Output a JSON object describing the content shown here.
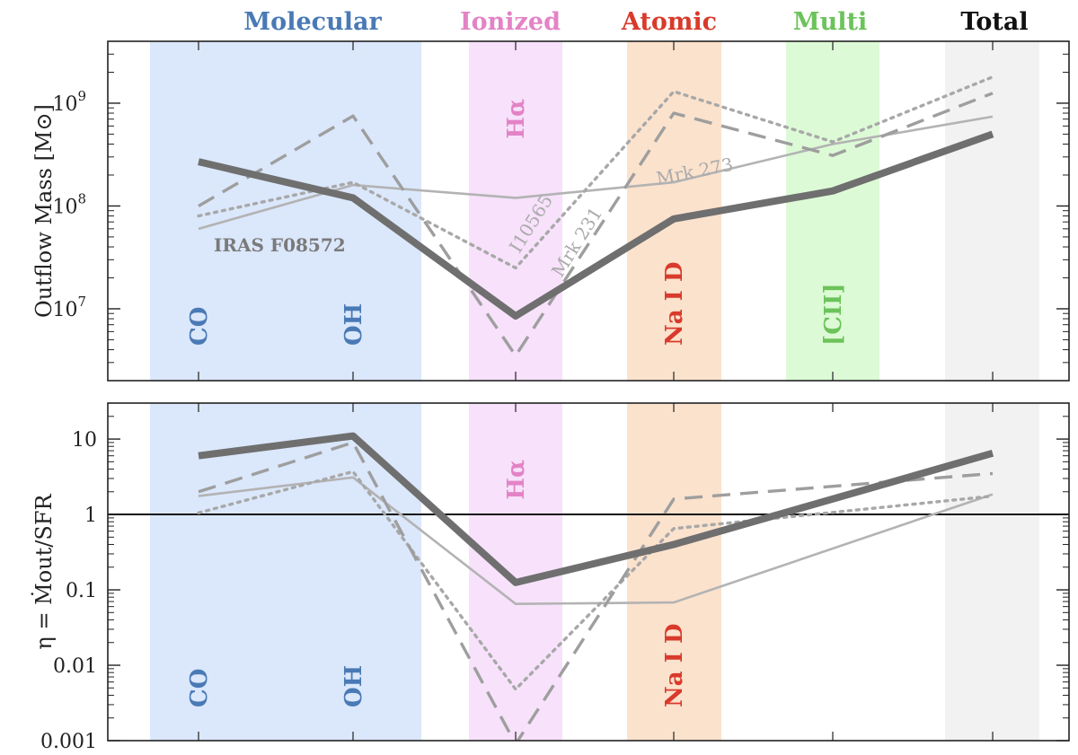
{
  "chart_data": [
    {
      "type": "line",
      "scale": "log",
      "ylabel": "Outflow Mass [M⊙]",
      "ylim": [
        2000000,
        4000000000
      ],
      "yticks": [
        {
          "value": 10000000,
          "label": "10",
          "exp": "7"
        },
        {
          "value": 100000000,
          "label": "10",
          "exp": "8"
        },
        {
          "value": 1000000000,
          "label": "10",
          "exp": "9"
        }
      ],
      "bands": [
        {
          "name": "Molecular",
          "color": "#4a7ab5",
          "fill": "#dbe7fb",
          "labels": [
            "CO",
            "OH"
          ]
        },
        {
          "name": "Ionized",
          "color": "#e383c5",
          "fill": "#f7e1fb",
          "labels": [
            "Hα"
          ]
        },
        {
          "name": "Atomic",
          "color": "#d93a2b",
          "fill": "#fbe2cd",
          "labels": [
            "Na I D"
          ]
        },
        {
          "name": "Multi",
          "color": "#6cc35a",
          "fill": "#ddfad6",
          "labels": [
            "[CII]"
          ]
        },
        {
          "name": "Total",
          "color": "#111111",
          "fill": "#f2f2f2",
          "labels": []
        }
      ],
      "series": [
        {
          "name": "IRAS F08572",
          "style": "thick",
          "color": "#6f6f6f",
          "points": [
            [
              0,
              270000000
            ],
            [
              1,
              120000000
            ],
            [
              2,
              8500000
            ],
            [
              3,
              75000000
            ],
            [
              4,
              140000000
            ],
            [
              5,
              500000000
            ]
          ]
        },
        {
          "name": "Mrk 231",
          "style": "dashed",
          "color": "#9e9e9e",
          "points": [
            [
              0,
              100000000
            ],
            [
              1,
              750000000
            ],
            [
              2,
              3500000
            ],
            [
              3,
              800000000
            ],
            [
              4,
              310000000
            ],
            [
              5,
              1250000000
            ]
          ]
        },
        {
          "name": "I10565",
          "style": "dotted",
          "color": "#a8a8a8",
          "points": [
            [
              0,
              80000000
            ],
            [
              1,
              170000000
            ],
            [
              2,
              25000000
            ],
            [
              3,
              1300000000
            ],
            [
              4,
              420000000
            ],
            [
              5,
              1800000000
            ]
          ]
        },
        {
          "name": "Mrk 273",
          "style": "thin",
          "color": "#b3b3b3",
          "points": [
            [
              0,
              60000000
            ],
            [
              1,
              160000000
            ],
            [
              2,
              120000000
            ],
            [
              3,
              170000000
            ],
            [
              4,
              400000000
            ],
            [
              5,
              740000000
            ]
          ]
        }
      ]
    },
    {
      "type": "line",
      "scale": "log",
      "ylabel": "η = Ṁout/SFR",
      "ylim": [
        0.001,
        30
      ],
      "yticks": [
        {
          "value": 0.001,
          "label": "0.001"
        },
        {
          "value": 0.01,
          "label": "0.01"
        },
        {
          "value": 0.1,
          "label": "0.1"
        },
        {
          "value": 1,
          "label": "1"
        },
        {
          "value": 10,
          "label": "10"
        }
      ],
      "reference_line": 1,
      "bands": [
        {
          "name": "Molecular",
          "color": "#4a7ab5",
          "fill": "#dbe7fb",
          "labels": [
            "CO",
            "OH"
          ]
        },
        {
          "name": "Ionized",
          "color": "#e383c5",
          "fill": "#f7e1fb",
          "labels": [
            "Hα"
          ]
        },
        {
          "name": "Atomic",
          "color": "#d93a2b",
          "fill": "#fbe2cd",
          "labels": [
            "Na I D"
          ]
        },
        {
          "name": "Total",
          "color": "#111111",
          "fill": "#f2f2f2",
          "labels": []
        }
      ],
      "series": [
        {
          "name": "IRAS F08572",
          "style": "thick",
          "color": "#6f6f6f",
          "points": [
            [
              0,
              6.0
            ],
            [
              1,
              11.0
            ],
            [
              2,
              0.125
            ],
            [
              3,
              0.4
            ],
            [
              5,
              6.5
            ]
          ]
        },
        {
          "name": "Mrk 231",
          "style": "dashed",
          "color": "#9e9e9e",
          "points": [
            [
              0,
              2.0
            ],
            [
              1,
              9.0
            ],
            [
              2,
              0.0009
            ],
            [
              3,
              1.6
            ],
            [
              5,
              3.5
            ]
          ]
        },
        {
          "name": "I10565",
          "style": "dotted",
          "color": "#a8a8a8",
          "points": [
            [
              0,
              1.05
            ],
            [
              1,
              3.7
            ],
            [
              2,
              0.0048
            ],
            [
              3,
              0.65
            ],
            [
              5,
              1.75
            ]
          ]
        },
        {
          "name": "Mrk 273",
          "style": "thin",
          "color": "#b3b3b3",
          "points": [
            [
              0,
              1.75
            ],
            [
              1,
              3.1
            ],
            [
              2,
              0.065
            ],
            [
              3,
              0.068
            ],
            [
              5,
              1.85
            ]
          ]
        }
      ]
    }
  ]
}
